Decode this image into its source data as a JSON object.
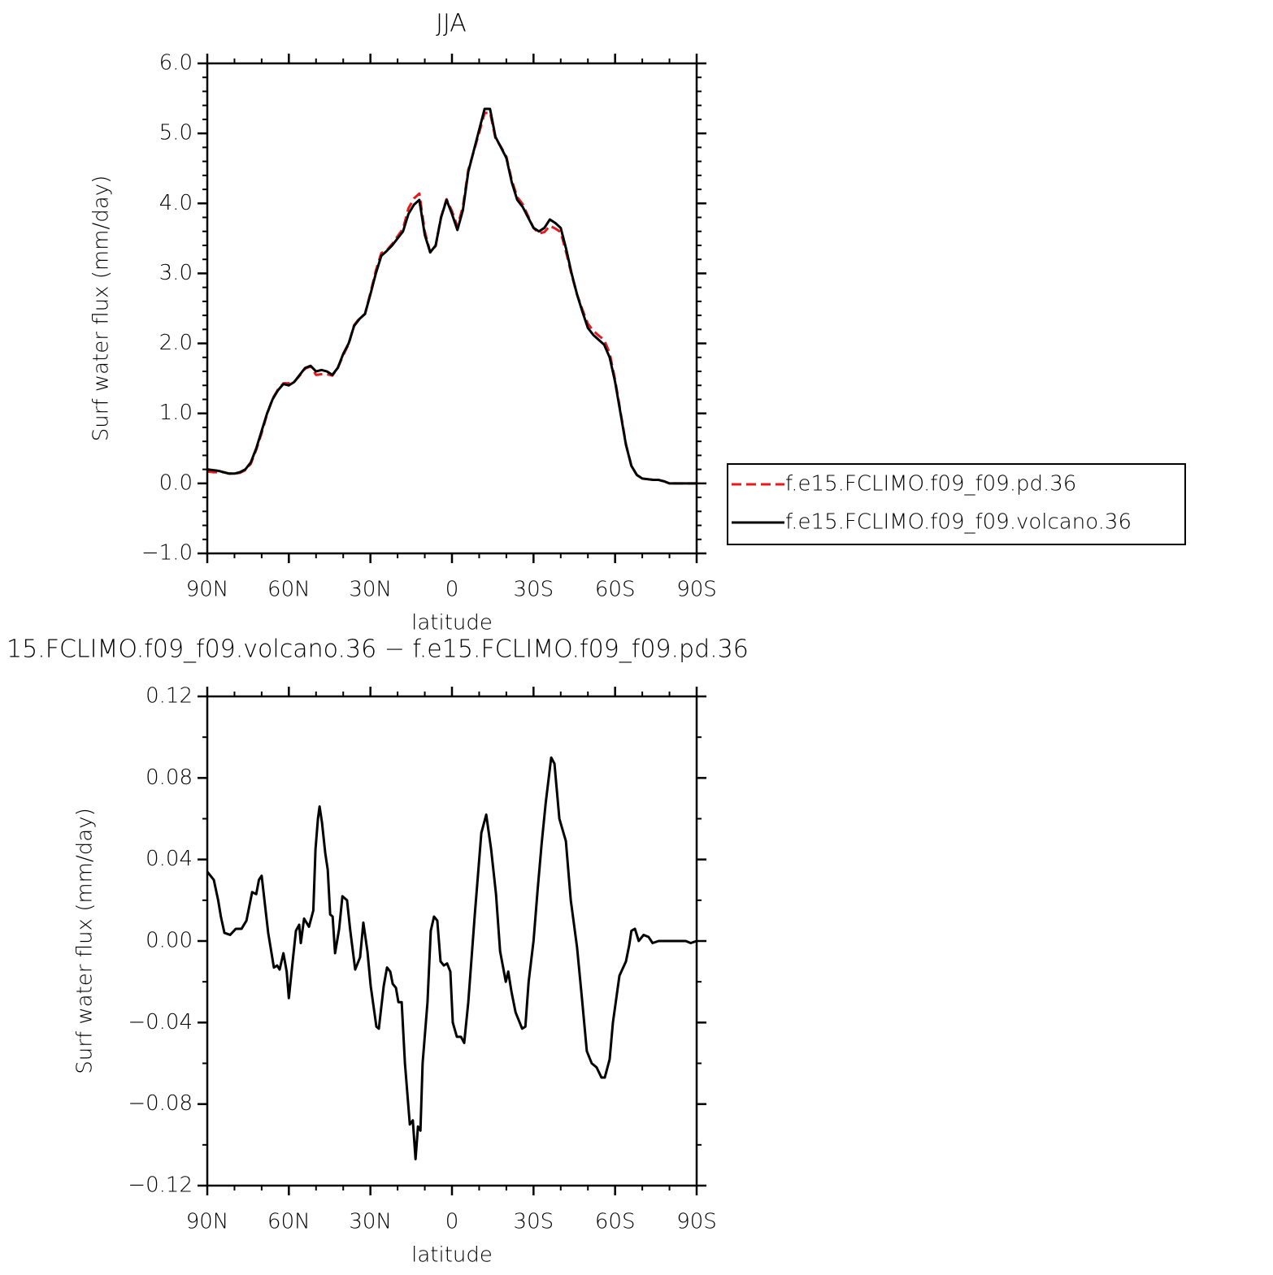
{
  "chart_data": [
    {
      "type": "line",
      "title": "JJA",
      "xlabel": "latitude",
      "ylabel": "Surf water flux (mm/day)",
      "legend": "right",
      "xlim": [
        90,
        -90
      ],
      "xticks": [
        {
          "value": 90,
          "label": "90N"
        },
        {
          "value": 60,
          "label": "60N"
        },
        {
          "value": 30,
          "label": "30N"
        },
        0,
        {
          "value": -30,
          "label": "30S"
        },
        {
          "value": -60,
          "label": "60S"
        },
        {
          "value": -90,
          "label": "90S"
        }
      ],
      "xminorticks": [
        80,
        70,
        50,
        40,
        20,
        10,
        -10,
        -20,
        -40,
        -50,
        -70,
        -80
      ],
      "ylim": [
        -1,
        6
      ],
      "yticks": [
        {
          "value": -1,
          "label": "−1.0"
        },
        {
          "value": 0,
          "label": "0.0"
        },
        {
          "value": 1,
          "label": "1.0"
        },
        {
          "value": 2,
          "label": "2.0"
        },
        {
          "value": 3,
          "label": "3.0"
        },
        {
          "value": 4,
          "label": "4.0"
        },
        {
          "value": 5,
          "label": "5.0"
        },
        {
          "value": 6,
          "label": "6.0"
        }
      ],
      "yminorticks": [
        -0.8,
        -0.6,
        -0.4,
        -0.2,
        0.2,
        0.4,
        0.6,
        0.8,
        1.2,
        1.4,
        1.6,
        1.8,
        2.2,
        2.4,
        2.6,
        2.8,
        3.2,
        3.4,
        3.6,
        3.8,
        4.2,
        4.4,
        4.6,
        4.8,
        5.2,
        5.4,
        5.6,
        5.8
      ],
      "x": [
        90,
        88,
        86,
        84,
        82,
        80,
        78,
        76,
        74,
        72,
        70,
        68,
        66,
        64,
        62,
        60,
        58,
        56,
        54,
        52,
        50,
        48,
        46,
        44,
        42,
        40,
        38,
        36,
        34,
        32,
        30,
        28,
        26,
        24,
        22,
        20,
        18,
        16,
        14,
        12,
        10,
        8,
        6,
        4,
        2,
        0,
        -2,
        -4,
        -6,
        -8,
        -10,
        -12,
        -14,
        -16,
        -18,
        -20,
        -22,
        -24,
        -26,
        -28,
        -30,
        -32,
        -34,
        -36,
        -38,
        -40,
        -42,
        -44,
        -46,
        -48,
        -50,
        -52,
        -54,
        -56,
        -58,
        -60,
        -62,
        -64,
        -66,
        -68,
        -70,
        -72,
        -74,
        -76,
        -78,
        -80,
        -82,
        -84,
        -86,
        -88,
        -90
      ],
      "series": [
        {
          "name": "f.e15.FCLIMO.f09_f09.pd.36",
          "color": "#e41a1c",
          "line_style": "dashed",
          "values": [
            0.17,
            0.16,
            0.16,
            0.16,
            0.14,
            0.14,
            0.15,
            0.19,
            0.28,
            0.48,
            0.72,
            0.99,
            1.21,
            1.34,
            1.43,
            1.43,
            1.45,
            1.54,
            1.64,
            1.67,
            1.55,
            1.56,
            1.56,
            1.54,
            1.65,
            1.83,
            1.99,
            2.26,
            2.36,
            2.42,
            2.72,
            3.04,
            3.29,
            3.33,
            3.42,
            3.53,
            3.64,
            3.93,
            4.07,
            4.14,
            3.6,
            3.3,
            3.39,
            3.81,
            4.06,
            3.89,
            3.67,
            3.95,
            4.48,
            4.74,
            5.01,
            5.29,
            5.3,
            4.93,
            4.81,
            4.67,
            4.33,
            4.09,
            3.99,
            3.82,
            3.65,
            3.57,
            3.59,
            3.68,
            3.64,
            3.59,
            3.3,
            2.98,
            2.7,
            2.48,
            2.28,
            2.18,
            2.11,
            2.05,
            1.86,
            1.48,
            1.02,
            0.56,
            0.25,
            0.12,
            0.07,
            0.06,
            0.05,
            0.05,
            0.03,
            0,
            0,
            0,
            0,
            0,
            0
          ]
        },
        {
          "name": "f.e15.FCLIMO.f09_f09.volcano.36",
          "color": "#000000",
          "line_style": "solid",
          "values": [
            0.2,
            0.19,
            0.18,
            0.16,
            0.14,
            0.14,
            0.16,
            0.2,
            0.3,
            0.5,
            0.75,
            1.0,
            1.2,
            1.33,
            1.42,
            1.4,
            1.45,
            1.55,
            1.65,
            1.68,
            1.6,
            1.62,
            1.6,
            1.55,
            1.65,
            1.85,
            2.0,
            2.25,
            2.35,
            2.42,
            2.7,
            3.0,
            3.25,
            3.32,
            3.4,
            3.5,
            3.6,
            3.85,
            3.98,
            4.05,
            3.55,
            3.3,
            3.4,
            3.8,
            4.05,
            3.85,
            3.62,
            3.9,
            4.45,
            4.75,
            5.05,
            5.35,
            5.35,
            4.95,
            4.8,
            4.65,
            4.3,
            4.05,
            3.95,
            3.8,
            3.65,
            3.6,
            3.65,
            3.77,
            3.72,
            3.65,
            3.35,
            3.0,
            2.7,
            2.45,
            2.22,
            2.12,
            2.05,
            1.98,
            1.8,
            1.45,
            1.0,
            0.55,
            0.25,
            0.12,
            0.07,
            0.06,
            0.05,
            0.05,
            0.03,
            0,
            0,
            0,
            0,
            0,
            0
          ]
        }
      ]
    },
    {
      "type": "line",
      "title": "15.FCLIMO.f09_f09.volcano.36 − f.e15.FCLIMO.f09_f09.pd.36",
      "xlabel": "latitude",
      "ylabel": "Surf water flux (mm/day)",
      "xlim": [
        90,
        -90
      ],
      "xticks": [
        {
          "value": 90,
          "label": "90N"
        },
        {
          "value": 60,
          "label": "60N"
        },
        {
          "value": 30,
          "label": "30N"
        },
        0,
        {
          "value": -30,
          "label": "30S"
        },
        {
          "value": -60,
          "label": "60S"
        },
        {
          "value": -90,
          "label": "90S"
        }
      ],
      "xminorticks": [
        80,
        70,
        50,
        40,
        20,
        10,
        -10,
        -20,
        -40,
        -50,
        -70,
        -80
      ],
      "ylim": [
        -0.12,
        0.12
      ],
      "yticks": [
        {
          "value": -0.12,
          "label": "−0.12"
        },
        {
          "value": -0.08,
          "label": "−0.08"
        },
        {
          "value": -0.04,
          "label": "−0.04"
        },
        {
          "value": 0,
          "label": "0.00"
        },
        0.04,
        0.08,
        0.12
      ],
      "yminorticks": [
        -0.1,
        -0.06,
        -0.02,
        0.02,
        0.06,
        0.1
      ],
      "x": [
        90,
        87.6,
        86,
        85,
        83.7,
        81.6,
        79.5,
        77.4,
        75.6,
        73.5,
        72,
        71,
        70,
        68.8,
        67.6,
        65.5,
        64.3,
        63.4,
        62,
        60.8,
        60,
        58.6,
        57.4,
        56.2,
        55.6,
        54.4,
        52.6,
        51,
        50.2,
        49.3,
        48.7,
        47.8,
        46.6,
        45.7,
        44.8,
        43.9,
        43,
        41.5,
        40.3,
        38.6,
        37.4,
        35.6,
        33.8,
        32.6,
        31.1,
        29.9,
        27.8,
        26.9,
        25.1,
        23.9,
        22.7,
        21.8,
        20.6,
        19.7,
        18.5,
        17.3,
        15.5,
        14.4,
        13.4,
        12.5,
        11.6,
        10.8,
        9,
        7.8,
        6.6,
        5.4,
        4.2,
        3,
        1.8,
        0.6,
        -0.3,
        -1.8,
        -3.3,
        -4.5,
        -6,
        -8.4,
        -10.8,
        -12.6,
        -14.4,
        -16.2,
        -17.7,
        -19.8,
        -20.7,
        -21.9,
        -23.4,
        -25.8,
        -27,
        -28.2,
        -30,
        -31.5,
        -33,
        -34.5,
        -36.5,
        -37.7,
        -39.5,
        -41.9,
        -43.7,
        -46,
        -47.8,
        -49.6,
        -51.4,
        -53.2,
        -55,
        -56.2,
        -58,
        -59.2,
        -61.6,
        -64,
        -65.2,
        -66,
        -67.3,
        -68.7,
        -70.5,
        -72.3,
        -73.8,
        -76,
        -80,
        -86,
        -87.8,
        -90
      ],
      "series": [
        {
          "color": "#000000",
          "line_style": "solid",
          "values": [
            0.034,
            0.03,
            0.02,
            0.012,
            0.004,
            0.003,
            0.006,
            0.006,
            0.01,
            0.024,
            0.023,
            0.03,
            0.032,
            0.018,
            0.004,
            -0.013,
            -0.012,
            -0.014,
            -0.006,
            -0.015,
            -0.028,
            -0.01,
            0.005,
            0.008,
            -0.001,
            0.011,
            0.007,
            0.015,
            0.045,
            0.06,
            0.066,
            0.058,
            0.043,
            0.035,
            0.013,
            0.012,
            -0.006,
            0.006,
            0.022,
            0.02,
            0.005,
            -0.014,
            -0.008,
            0.009,
            -0.005,
            -0.022,
            -0.042,
            -0.043,
            -0.022,
            -0.013,
            -0.015,
            -0.021,
            -0.023,
            -0.03,
            -0.03,
            -0.06,
            -0.09,
            -0.088,
            -0.107,
            -0.091,
            -0.093,
            -0.06,
            -0.03,
            0.005,
            0.012,
            0.01,
            -0.01,
            -0.012,
            -0.011,
            -0.015,
            -0.04,
            -0.047,
            -0.047,
            -0.05,
            -0.03,
            0.013,
            0.053,
            0.062,
            0.045,
            0.023,
            -0.005,
            -0.02,
            -0.015,
            -0.025,
            -0.035,
            -0.043,
            -0.042,
            -0.02,
            0,
            0.025,
            0.048,
            0.068,
            0.09,
            0.087,
            0.06,
            0.049,
            0.02,
            -0.003,
            -0.028,
            -0.054,
            -0.06,
            -0.062,
            -0.067,
            -0.067,
            -0.058,
            -0.04,
            -0.017,
            -0.01,
            -0.002,
            0.005,
            0.006,
            0,
            0.003,
            0.002,
            -0.001,
            0,
            0,
            0,
            -0.001,
            0
          ]
        }
      ]
    }
  ]
}
